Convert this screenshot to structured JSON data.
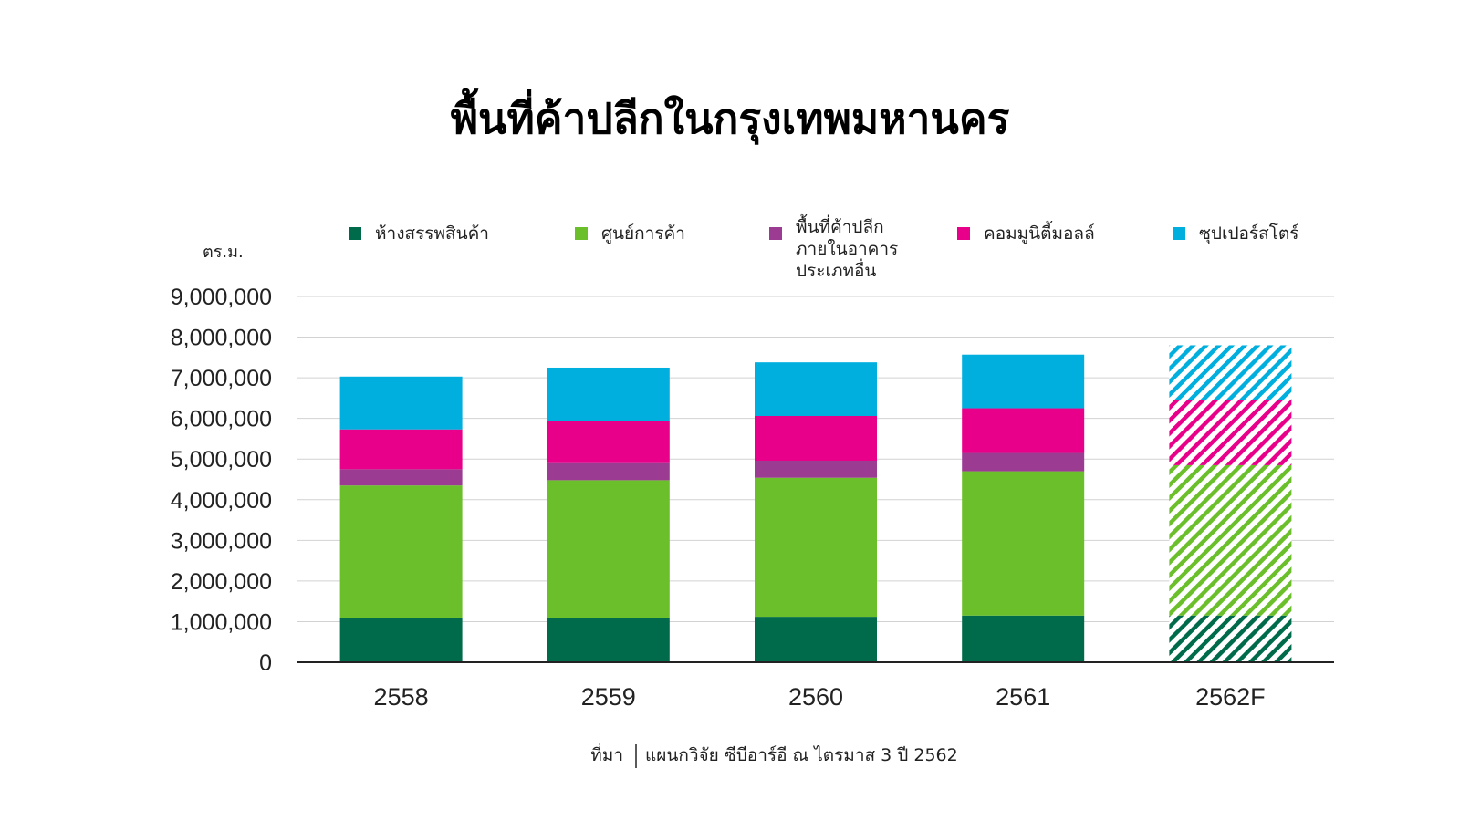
{
  "chart_data": {
    "type": "bar",
    "stacked": true,
    "title": "พื้นที่ค้าปลีกในกรุงเทพมหานคร",
    "ylabel": "ตร.ม.",
    "xlabel": "",
    "ylim": [
      0,
      9000000
    ],
    "yticks": [
      "0",
      "1,000,000",
      "2,000,000",
      "3,000,000",
      "4,000,000",
      "5,000,000",
      "6,000,000",
      "7,000,000",
      "8,000,000",
      "9,000,000"
    ],
    "ytick_values": [
      0,
      1000000,
      2000000,
      3000000,
      4000000,
      5000000,
      6000000,
      7000000,
      8000000,
      9000000
    ],
    "grid": true,
    "legend_position": "top",
    "categories": [
      "2558",
      "2559",
      "2560",
      "2561",
      "2562F"
    ],
    "forecast_categories": [
      "2562F"
    ],
    "series": [
      {
        "name": "ห้างสรรพสินค้า",
        "color": "#006b4a",
        "values": [
          1100000,
          1100000,
          1120000,
          1150000,
          1150000
        ]
      },
      {
        "name": "ศูนย์การค้า",
        "color": "#6abf2a",
        "values": [
          3250000,
          3380000,
          3420000,
          3550000,
          3700000
        ]
      },
      {
        "name": "พื้นที่ค้าปลีกภายในอาคารประเภทอื่น",
        "legend_lines": [
          "พื้นที่ค้าปลีก",
          "ภายในอาคาร",
          "ประเภทอื่น"
        ],
        "color": "#9b3c92",
        "values": [
          400000,
          420000,
          420000,
          450000,
          0
        ]
      },
      {
        "name": "คอมมูนิตี้มอลล์",
        "color": "#e8008a",
        "values": [
          980000,
          1030000,
          1100000,
          1100000,
          1600000
        ]
      },
      {
        "name": "ซุปเปอร์สโตร์",
        "color": "#00afde",
        "values": [
          1300000,
          1320000,
          1320000,
          1320000,
          1350000
        ]
      }
    ]
  },
  "source": {
    "label": "ที่มา",
    "text": "แผนกวิจัย ซีบีอาร์อี ณ ไตรมาส 3 ปี 2562"
  }
}
